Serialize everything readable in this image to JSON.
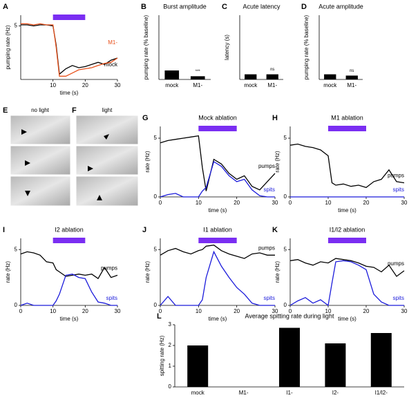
{
  "chart_data": [
    {
      "type": "line",
      "panel": "A",
      "xlabel": "time (s)",
      "ylabel": "pumping rate (Hz)",
      "x": [
        0,
        2,
        4,
        6,
        8,
        10,
        11,
        12,
        14,
        16,
        18,
        20,
        22,
        24,
        26,
        28,
        30
      ],
      "xlim": [
        0,
        30
      ],
      "xticks": [
        10,
        20,
        30
      ],
      "ylim": [
        0,
        6
      ],
      "yticks": [
        5
      ],
      "stimulus": [
        10,
        20
      ],
      "stimulus_color": "#7a2ef2",
      "series": [
        {
          "name": "mock",
          "color": "#000000",
          "values": [
            5.1,
            5.1,
            5.0,
            5.1,
            5.1,
            5.0,
            3.2,
            0.5,
            1.0,
            1.3,
            1.1,
            1.2,
            1.4,
            1.6,
            1.4,
            1.8,
            2.0
          ]
        },
        {
          "name": "M1-",
          "color": "#e8501a",
          "values": [
            5.2,
            5.2,
            5.1,
            5.2,
            5.1,
            5.1,
            3.0,
            0.3,
            0.3,
            0.6,
            0.9,
            1.0,
            1.1,
            1.3,
            1.5,
            1.6,
            2.0
          ]
        }
      ]
    },
    {
      "type": "bar",
      "panel": "B",
      "title": "Burst amplitude",
      "ylabel": "pumping rate (% baseline)",
      "categories": [
        "mock",
        "M1-"
      ],
      "values": [
        14,
        5
      ],
      "ylim": [
        0,
        100
      ],
      "annotation": "***",
      "color": "#000000"
    },
    {
      "type": "bar",
      "panel": "C",
      "title": "Acute latency",
      "ylabel": "latency (s)",
      "categories": [
        "mock",
        "M1-"
      ],
      "values": [
        0.8,
        0.8
      ],
      "ylim": [
        0,
        10
      ],
      "annotation": "ns",
      "color": "#000000"
    },
    {
      "type": "bar",
      "panel": "D",
      "title": "Acute amplitude",
      "ylabel": "pumping rate (% baseline)",
      "categories": [
        "mock",
        "M1-"
      ],
      "values": [
        8,
        6
      ],
      "ylim": [
        0,
        100
      ],
      "annotation": "ns",
      "color": "#000000"
    },
    {
      "type": "line",
      "panel": "G",
      "title": "Mock ablation",
      "xlabel": "time (s)",
      "ylabel": "rate (Hz)",
      "x": [
        0,
        2,
        4,
        6,
        8,
        10,
        11,
        12,
        14,
        16,
        18,
        20,
        22,
        24,
        26,
        28,
        30
      ],
      "xlim": [
        0,
        30
      ],
      "xticks": [
        0,
        10,
        20,
        30
      ],
      "ylim": [
        0,
        6
      ],
      "yticks": [
        0,
        5
      ],
      "stimulus": [
        10,
        20
      ],
      "stimulus_color": "#7a2ef2",
      "series": [
        {
          "name": "pumps",
          "color": "#000000",
          "values": [
            4.6,
            4.8,
            4.9,
            5.0,
            5.1,
            5.2,
            2.5,
            0.5,
            3.2,
            2.8,
            2.0,
            1.5,
            1.8,
            0.9,
            0.6,
            1.3,
            2.0
          ]
        },
        {
          "name": "spits",
          "color": "#1a1adb",
          "values": [
            0,
            0.2,
            0.3,
            0,
            0,
            0,
            0.5,
            0.8,
            3.0,
            2.6,
            1.8,
            1.3,
            1.5,
            0.6,
            0.1,
            0,
            0
          ]
        }
      ]
    },
    {
      "type": "line",
      "panel": "H",
      "title": "M1 ablation",
      "xlabel": "time (s)",
      "ylabel": "rate (Hz)",
      "x": [
        0,
        2,
        4,
        6,
        8,
        10,
        11,
        12,
        14,
        16,
        18,
        20,
        22,
        24,
        26,
        28,
        30
      ],
      "xlim": [
        0,
        30
      ],
      "xticks": [
        0,
        10,
        20,
        30
      ],
      "ylim": [
        0,
        6
      ],
      "yticks": [
        0,
        5
      ],
      "stimulus": [
        10,
        20
      ],
      "stimulus_color": "#7a2ef2",
      "series": [
        {
          "name": "pumps",
          "color": "#000000",
          "values": [
            4.4,
            4.5,
            4.3,
            4.2,
            4.0,
            3.5,
            1.2,
            1.0,
            1.1,
            0.9,
            1.0,
            0.8,
            1.3,
            1.5,
            2.3,
            1.3,
            1.2
          ]
        },
        {
          "name": "spits",
          "color": "#1a1adb",
          "values": [
            0,
            0,
            0,
            0,
            0,
            0,
            0,
            0,
            0,
            0,
            0,
            0,
            0,
            0,
            0,
            0,
            0
          ]
        }
      ]
    },
    {
      "type": "line",
      "panel": "I",
      "title": "I2 ablation",
      "xlabel": "time (s)",
      "ylabel": "rate (Hz)",
      "x": [
        0,
        2,
        4,
        6,
        8,
        10,
        11,
        12,
        14,
        16,
        18,
        20,
        22,
        24,
        26,
        28,
        30
      ],
      "xlim": [
        0,
        30
      ],
      "xticks": [
        0,
        10,
        20,
        30
      ],
      "ylim": [
        0,
        6
      ],
      "yticks": [
        0,
        5
      ],
      "stimulus": [
        10,
        20
      ],
      "stimulus_color": "#7a2ef2",
      "series": [
        {
          "name": "pumps",
          "color": "#000000",
          "values": [
            4.6,
            4.8,
            4.7,
            4.5,
            3.9,
            3.8,
            3.2,
            3.0,
            2.6,
            2.7,
            2.8,
            2.7,
            2.8,
            2.4,
            3.4,
            2.5,
            2.7
          ]
        },
        {
          "name": "spits",
          "color": "#1a1adb",
          "values": [
            0,
            0.2,
            0,
            0,
            0,
            0,
            0.4,
            1.0,
            2.7,
            2.8,
            2.5,
            2.4,
            1.2,
            0.3,
            0.2,
            0,
            0
          ]
        }
      ]
    },
    {
      "type": "line",
      "panel": "J",
      "title": "I1 ablation",
      "xlabel": "time (s)",
      "ylabel": "rate (Hz)",
      "x": [
        0,
        2,
        4,
        6,
        8,
        10,
        11,
        12,
        14,
        16,
        18,
        20,
        22,
        24,
        26,
        28,
        30
      ],
      "xlim": [
        0,
        30
      ],
      "xticks": [
        0,
        10,
        20,
        30
      ],
      "ylim": [
        0,
        6
      ],
      "yticks": [
        0,
        5
      ],
      "stimulus": [
        10,
        20
      ],
      "stimulus_color": "#7a2ef2",
      "series": [
        {
          "name": "pumps",
          "color": "#000000",
          "values": [
            4.5,
            4.9,
            5.1,
            4.8,
            4.6,
            4.9,
            5.0,
            5.3,
            5.4,
            4.9,
            4.6,
            4.4,
            4.2,
            4.6,
            4.7,
            4.5,
            4.5
          ]
        },
        {
          "name": "spits",
          "color": "#1a1adb",
          "values": [
            0,
            0.8,
            0,
            0,
            0,
            0,
            0.5,
            2.5,
            4.8,
            3.5,
            2.5,
            1.6,
            1.0,
            0.2,
            0,
            0,
            0
          ]
        }
      ]
    },
    {
      "type": "line",
      "panel": "K",
      "title": "I1/I2 ablation",
      "xlabel": "time (s)",
      "ylabel": "rate (Hz)",
      "x": [
        0,
        2,
        4,
        6,
        8,
        10,
        11,
        12,
        14,
        16,
        18,
        20,
        22,
        24,
        26,
        28,
        30
      ],
      "xlim": [
        0,
        30
      ],
      "xticks": [
        0,
        10,
        20,
        30
      ],
      "ylim": [
        0,
        6
      ],
      "yticks": [
        0,
        5
      ],
      "stimulus": [
        10,
        20
      ],
      "stimulus_color": "#7a2ef2",
      "series": [
        {
          "name": "pumps",
          "color": "#000000",
          "values": [
            4.0,
            4.1,
            3.8,
            3.6,
            3.9,
            3.8,
            4.0,
            4.2,
            4.1,
            4.0,
            3.8,
            3.5,
            3.4,
            3.0,
            3.6,
            2.6,
            3.1
          ]
        },
        {
          "name": "spits",
          "color": "#1a1adb",
          "values": [
            0,
            0.4,
            0.7,
            0.2,
            0.5,
            0,
            2.0,
            3.9,
            4.0,
            3.9,
            3.6,
            3.2,
            1.0,
            0.3,
            0,
            0,
            0
          ]
        }
      ]
    },
    {
      "type": "bar",
      "panel": "L",
      "title": "Average spitting rate during light",
      "ylabel": "spitting rate (Hz)",
      "categories": [
        "mock",
        "M1-",
        "I1-",
        "I2-",
        "I1/I2-"
      ],
      "values": [
        2.0,
        0,
        2.85,
        2.1,
        2.6
      ],
      "ylim": [
        0,
        3
      ],
      "yticks": [
        0,
        1,
        2,
        3
      ],
      "color": "#000000"
    }
  ],
  "images": [
    {
      "panel": "E",
      "label": "no light"
    },
    {
      "panel": "F",
      "label": "light"
    }
  ]
}
